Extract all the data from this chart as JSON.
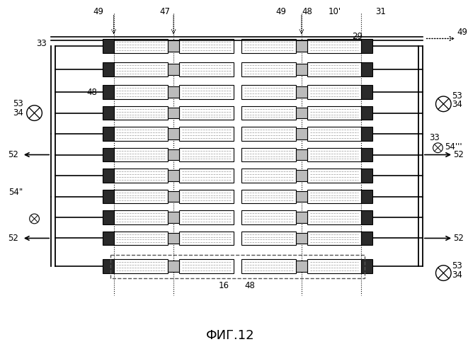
{
  "title": "ФИГ.12",
  "bg_color": "#ffffff",
  "num_rows": 11,
  "line_color": "#000000",
  "dash_color": "#555555",
  "label_49_topleft": "49",
  "label_47": "47",
  "label_49_topmid": "49",
  "label_48_top": "48",
  "label_10prime": "10'",
  "label_31": "31",
  "label_49_right": "49",
  "label_29": "29",
  "label_33": "33",
  "label_34": "34",
  "label_53": "53",
  "label_48_mid": "48",
  "label_52": "52",
  "label_54pp": "54\"",
  "label_54ppp": "54'''",
  "label_16": "16",
  "label_48_bot": "48"
}
